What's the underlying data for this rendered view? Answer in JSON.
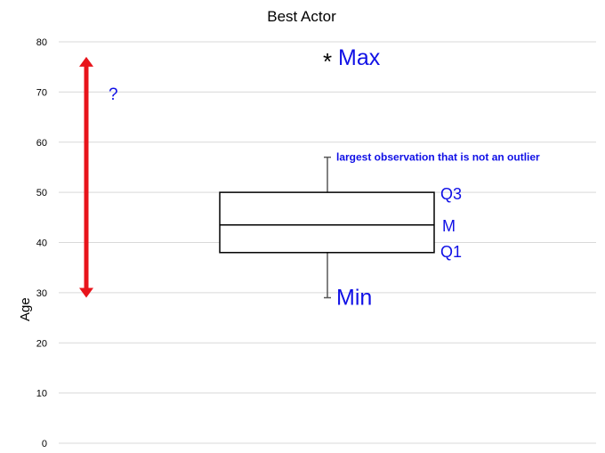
{
  "chart_data": {
    "type": "boxplot",
    "title": "Best Actor",
    "xlabel": "",
    "ylabel": "Age",
    "ylim": [
      0,
      80
    ],
    "yticks": [
      0,
      10,
      20,
      30,
      40,
      50,
      60,
      70,
      80
    ],
    "grid": true,
    "box": {
      "q1": 38,
      "median": 43.5,
      "q3": 50,
      "whisker_low": 29,
      "whisker_high": 57
    },
    "outliers": [
      77
    ],
    "outlier_marker": "*",
    "annotations": {
      "max": "Max",
      "min": "Min",
      "q3": "Q3",
      "median": "M",
      "q1": "Q1",
      "upper_whisker_note": "largest observation that is not an outlier",
      "range_question": "?"
    },
    "range_arrow": {
      "from": 29,
      "to": 77,
      "color": "#e8141b"
    },
    "annotation_color": "#1010e6"
  }
}
